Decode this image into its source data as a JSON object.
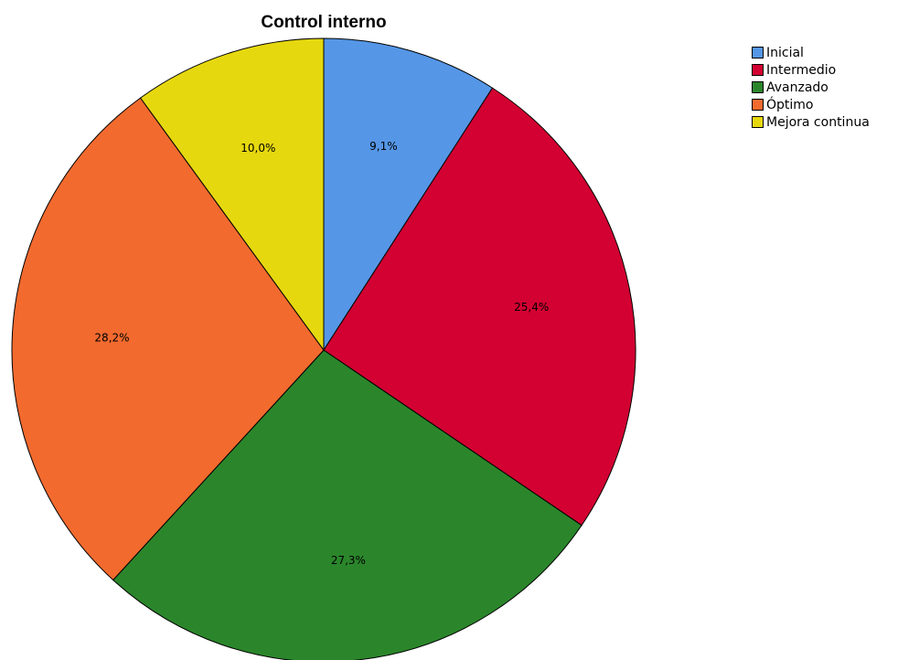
{
  "chart_data": {
    "type": "pie",
    "title": "Control interno",
    "categories": [
      "Inicial",
      "Intermedio",
      "Avanzado",
      "Óptimo",
      "Mejora continua"
    ],
    "values": [
      9.1,
      25.4,
      27.3,
      28.2,
      10.0
    ],
    "data_labels": [
      "9,1%",
      "25,4%",
      "27,3%",
      "28,2%",
      "10,0%"
    ],
    "colors": [
      "#5596e6",
      "#d30032",
      "#2b862b",
      "#f26a2e",
      "#e6d80f"
    ],
    "legend_position": "top-right",
    "start_angle": "12 o'clock",
    "direction": "clockwise"
  }
}
